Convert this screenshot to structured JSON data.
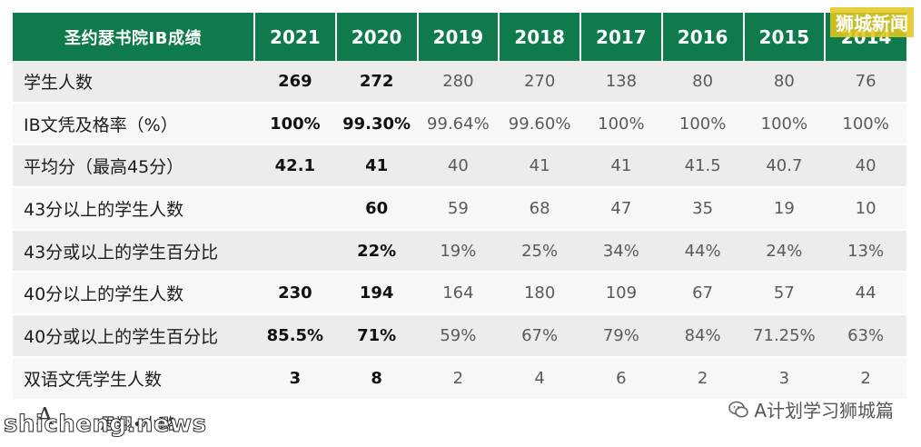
{
  "table": {
    "title": "圣约瑟书院IB成绩",
    "years": [
      "2021",
      "2020",
      "2019",
      "2018",
      "2017",
      "2016",
      "2015",
      "2014"
    ],
    "rows": [
      {
        "label": "学生人数",
        "cells": [
          "269",
          "272",
          "280",
          "270",
          "138",
          "80",
          "80",
          "76"
        ]
      },
      {
        "label": "IB文凭及格率（%）",
        "cells": [
          "100%",
          "99.30%",
          "99.64%",
          "99.60%",
          "100%",
          "100%",
          "100%",
          "100%"
        ]
      },
      {
        "label": "平均分（最高45分）",
        "cells": [
          "42.1",
          "41",
          "40",
          "41",
          "41",
          "41.5",
          "40.7",
          "40"
        ]
      },
      {
        "label": "43分以上的学生人数",
        "cells": [
          "",
          "60",
          "59",
          "68",
          "47",
          "35",
          "19",
          "10"
        ]
      },
      {
        "label": "43分或以上的学生百分比",
        "cells": [
          "",
          "22%",
          "19%",
          "25%",
          "34%",
          "44%",
          "24%",
          "13%"
        ]
      },
      {
        "label": "40分以上的学生人数",
        "cells": [
          "230",
          "194",
          "164",
          "180",
          "109",
          "67",
          "57",
          "44"
        ]
      },
      {
        "label": "40分或以上的学生百分比",
        "cells": [
          "85.5%",
          "71%",
          "59%",
          "67%",
          "79%",
          "84%",
          "71.25%",
          "63%"
        ]
      },
      {
        "label": "双语文凭学生人数",
        "cells": [
          "3",
          "8",
          "2",
          "4",
          "6",
          "2",
          "3",
          "2"
        ]
      }
    ]
  },
  "chart_data": {
    "type": "table",
    "title": "圣约瑟书院IB成绩",
    "columns": [
      "2021",
      "2020",
      "2019",
      "2018",
      "2017",
      "2016",
      "2015",
      "2014"
    ],
    "rows": [
      {
        "name": "学生人数",
        "values": [
          269,
          272,
          280,
          270,
          138,
          80,
          80,
          76
        ]
      },
      {
        "name": "IB文凭及格率（%）",
        "values": [
          100,
          99.3,
          99.64,
          99.6,
          100,
          100,
          100,
          100
        ]
      },
      {
        "name": "平均分（最高45分）",
        "values": [
          42.1,
          41,
          40,
          41,
          41,
          41.5,
          40.7,
          40
        ]
      },
      {
        "name": "43分以上的学生人数",
        "values": [
          null,
          60,
          59,
          68,
          47,
          35,
          19,
          10
        ]
      },
      {
        "name": "43分或以上的学生百分比",
        "values": [
          null,
          22,
          19,
          25,
          34,
          44,
          24,
          13
        ]
      },
      {
        "name": "40分以上的学生人数",
        "values": [
          230,
          194,
          164,
          180,
          109,
          67,
          57,
          44
        ]
      },
      {
        "name": "40分或以上的学生百分比",
        "values": [
          85.5,
          71,
          59,
          67,
          79,
          84,
          71.25,
          63
        ]
      },
      {
        "name": "双语文凭学生人数",
        "values": [
          3,
          8,
          2,
          4,
          6,
          2,
          3,
          2
        ]
      }
    ],
    "highlight_color": "#0f7a4b"
  },
  "watermarks": {
    "top_right": "狮城新闻",
    "logo_glyph": "A",
    "logo_text": "思翔•小璐",
    "site": "shicheng.news",
    "wechat": "A计划学习狮城篇"
  }
}
